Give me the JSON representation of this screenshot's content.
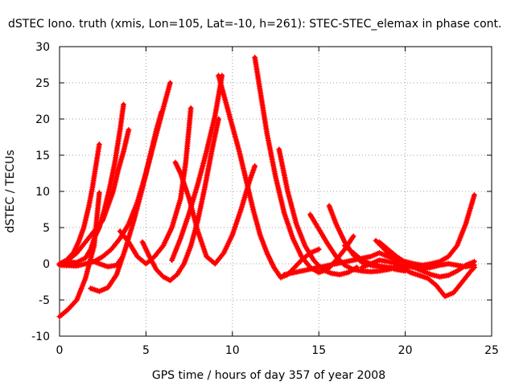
{
  "chart_data": {
    "type": "scatter",
    "title": "dSTEC Iono. truth (xmis, Lon=105, Lat=-10, h=261): STEC-STEC_elemax in phase cont.",
    "xlabel": "GPS time / hours of day 357 of year 2008",
    "ylabel": "dSTEC  / TECUs",
    "xlim": [
      0,
      25
    ],
    "ylim": [
      -10,
      30
    ],
    "xticks": [
      0,
      5,
      10,
      15,
      20,
      25
    ],
    "yticks": [
      -10,
      -5,
      0,
      5,
      10,
      15,
      20,
      25,
      30
    ],
    "grid": true,
    "legend": "none",
    "marker": "+",
    "color": "#ff0000",
    "series": [
      {
        "x": [
          0.0,
          0.4,
          0.8,
          1.1,
          1.4,
          1.7,
          1.9,
          2.1,
          2.3
        ],
        "y": [
          0.0,
          0.5,
          1.5,
          3.0,
          5.0,
          8.0,
          10.5,
          13.5,
          16.5
        ]
      },
      {
        "x": [
          0.0,
          0.5,
          1.0,
          1.5,
          1.8,
          2.0,
          2.3,
          2.6,
          2.9,
          3.2,
          3.5,
          3.7
        ],
        "y": [
          0.0,
          0.2,
          0.2,
          0.8,
          2.0,
          3.5,
          5.0,
          7.5,
          10.5,
          14.0,
          18.5,
          22.0
        ]
      },
      {
        "x": [
          0.0,
          0.5,
          1.0,
          1.5,
          2.0,
          2.5,
          2.8,
          3.1,
          3.4,
          3.7,
          4.0
        ],
        "y": [
          -0.1,
          0.5,
          1.5,
          3.0,
          4.5,
          6.0,
          8.0,
          10.0,
          13.0,
          15.5,
          18.5
        ]
      },
      {
        "x": [
          0.0,
          0.5,
          1.0,
          1.5,
          2.0,
          2.3
        ],
        "y": [
          -7.3,
          -6.3,
          -5.0,
          -2.0,
          2.5,
          9.8
        ]
      },
      {
        "x": [
          0.0,
          1.0,
          1.5,
          2.0,
          2.5,
          3.0,
          3.5,
          4.0,
          4.5,
          5.0,
          5.5,
          6.0,
          6.4
        ],
        "y": [
          -0.2,
          -0.3,
          0.0,
          0.3,
          1.0,
          2.0,
          3.5,
          5.5,
          8.5,
          12.5,
          17.0,
          21.5,
          25.0
        ]
      },
      {
        "x": [
          1.8,
          2.3,
          2.8,
          3.3,
          3.8,
          4.3,
          4.8,
          5.3,
          5.6,
          5.9
        ],
        "y": [
          -3.4,
          -3.8,
          -3.3,
          -1.5,
          2.0,
          6.0,
          10.5,
          15.5,
          18.5,
          21.0
        ]
      },
      {
        "x": [
          1.8,
          2.3,
          2.8,
          3.3,
          3.6
        ],
        "y": [
          0.5,
          0.0,
          -0.4,
          -0.2,
          0.8
        ]
      },
      {
        "x": [
          3.5,
          4.0,
          4.5,
          5.0,
          5.5,
          6.0,
          6.5,
          7.0,
          7.3,
          7.6
        ],
        "y": [
          4.5,
          3.0,
          1.0,
          0.0,
          1.0,
          2.5,
          5.0,
          9.0,
          14.0,
          21.5
        ]
      },
      {
        "x": [
          4.8,
          5.2,
          5.6,
          6.0,
          6.4,
          6.8,
          7.2,
          7.6,
          8.0,
          8.4,
          8.8,
          9.2
        ],
        "y": [
          3.0,
          1.0,
          -0.8,
          -1.8,
          -2.3,
          -1.5,
          0.0,
          2.5,
          6.0,
          10.5,
          15.5,
          20.0
        ]
      },
      {
        "x": [
          6.7,
          7.0,
          7.5,
          8.0,
          8.5,
          9.0,
          9.5,
          10.0,
          10.5,
          11.0,
          11.3
        ],
        "y": [
          14.0,
          12.5,
          9.0,
          4.5,
          1.0,
          0.0,
          1.5,
          4.0,
          7.5,
          11.5,
          13.5
        ]
      },
      {
        "x": [
          6.5,
          7.0,
          7.5,
          8.0,
          8.5,
          9.0,
          9.4
        ],
        "y": [
          0.5,
          3.5,
          7.0,
          11.0,
          15.5,
          20.5,
          26.0
        ]
      },
      {
        "x": [
          9.2,
          9.6,
          10.0,
          10.4,
          10.8,
          11.2,
          11.6,
          12.0,
          12.4,
          12.8,
          13.2,
          13.6,
          14.0,
          14.5,
          15.0
        ],
        "y": [
          26.0,
          22.5,
          19.0,
          15.5,
          11.5,
          7.5,
          4.0,
          1.5,
          -0.5,
          -1.9,
          -1.5,
          -0.5,
          0.5,
          1.5,
          2.0
        ]
      },
      {
        "x": [
          11.3,
          11.6,
          12.0,
          12.5,
          13.0,
          13.5,
          14.0,
          14.5,
          15.0,
          15.5,
          16.0,
          16.5,
          17.0
        ],
        "y": [
          28.5,
          24.0,
          18.0,
          12.0,
          7.0,
          3.5,
          1.0,
          -0.5,
          -1.2,
          -0.8,
          0.5,
          2.0,
          3.8
        ]
      },
      {
        "x": [
          12.7,
          13.2,
          13.7,
          14.2,
          14.7,
          15.2,
          15.7,
          16.2,
          16.7,
          17.2
        ],
        "y": [
          15.8,
          10.0,
          5.5,
          2.5,
          0.5,
          -0.8,
          -1.3,
          -1.5,
          -1.2,
          -0.5
        ]
      },
      {
        "x": [
          14.5,
          15.0,
          15.5,
          16.0,
          16.5,
          17.0,
          17.5,
          18.0,
          18.5,
          19.0,
          19.5
        ],
        "y": [
          6.8,
          4.8,
          2.8,
          1.0,
          -0.2,
          -0.8,
          -1.0,
          -1.1,
          -1.0,
          -0.8,
          -0.5
        ]
      },
      {
        "x": [
          15.6,
          16.0,
          16.5,
          17.0,
          17.5,
          18.0,
          18.5,
          19.0,
          19.5,
          20.0
        ],
        "y": [
          8.0,
          5.5,
          3.0,
          1.2,
          0.2,
          -0.2,
          -0.4,
          -0.5,
          -0.5,
          -0.3
        ]
      },
      {
        "x": [
          13.0,
          14.0,
          15.0,
          16.0,
          17.0,
          18.0,
          18.5,
          19.0,
          19.5,
          20.0,
          20.5,
          21.0,
          21.5,
          22.0,
          22.5,
          23.0,
          23.5,
          24.0
        ],
        "y": [
          -1.5,
          -1.0,
          -0.5,
          0.0,
          0.5,
          1.0,
          1.5,
          1.0,
          0.5,
          0.3,
          0.0,
          -0.2,
          0.0,
          0.3,
          1.0,
          2.5,
          5.5,
          9.5
        ]
      },
      {
        "x": [
          18.3,
          18.8,
          19.3,
          19.8,
          20.3,
          20.8,
          21.3,
          21.8,
          22.3,
          22.8,
          23.3,
          23.8,
          24.0
        ],
        "y": [
          3.2,
          2.0,
          0.8,
          -0.5,
          -1.2,
          -1.6,
          -2.0,
          -3.0,
          -4.5,
          -4.0,
          -2.5,
          -1.0,
          -0.5
        ]
      },
      {
        "x": [
          18.5,
          19.0,
          19.5,
          20.0,
          20.5,
          21.0,
          21.5,
          22.0,
          22.5,
          23.0,
          23.5,
          24.0
        ],
        "y": [
          3.0,
          2.0,
          1.0,
          0.2,
          -0.5,
          -1.0,
          -1.5,
          -1.8,
          -1.6,
          -1.0,
          -0.2,
          0.3
        ]
      },
      {
        "x": [
          17.5,
          18.0,
          18.5,
          19.0,
          19.5,
          20.0,
          20.5,
          21.0,
          21.5,
          22.0,
          22.5,
          23.0,
          23.5,
          24.0
        ],
        "y": [
          -0.5,
          0.0,
          0.5,
          0.3,
          0.0,
          -0.3,
          -0.5,
          -0.7,
          -0.5,
          -0.2,
          0.0,
          -0.2,
          -0.4,
          -0.2
        ]
      },
      {
        "x": [
          16.5,
          17.0,
          17.5,
          18.0,
          18.5,
          19.0,
          19.5,
          20.0
        ],
        "y": [
          2.5,
          1.5,
          0.5,
          0.0,
          -0.3,
          -0.5,
          -0.8,
          -1.0
        ]
      }
    ]
  }
}
